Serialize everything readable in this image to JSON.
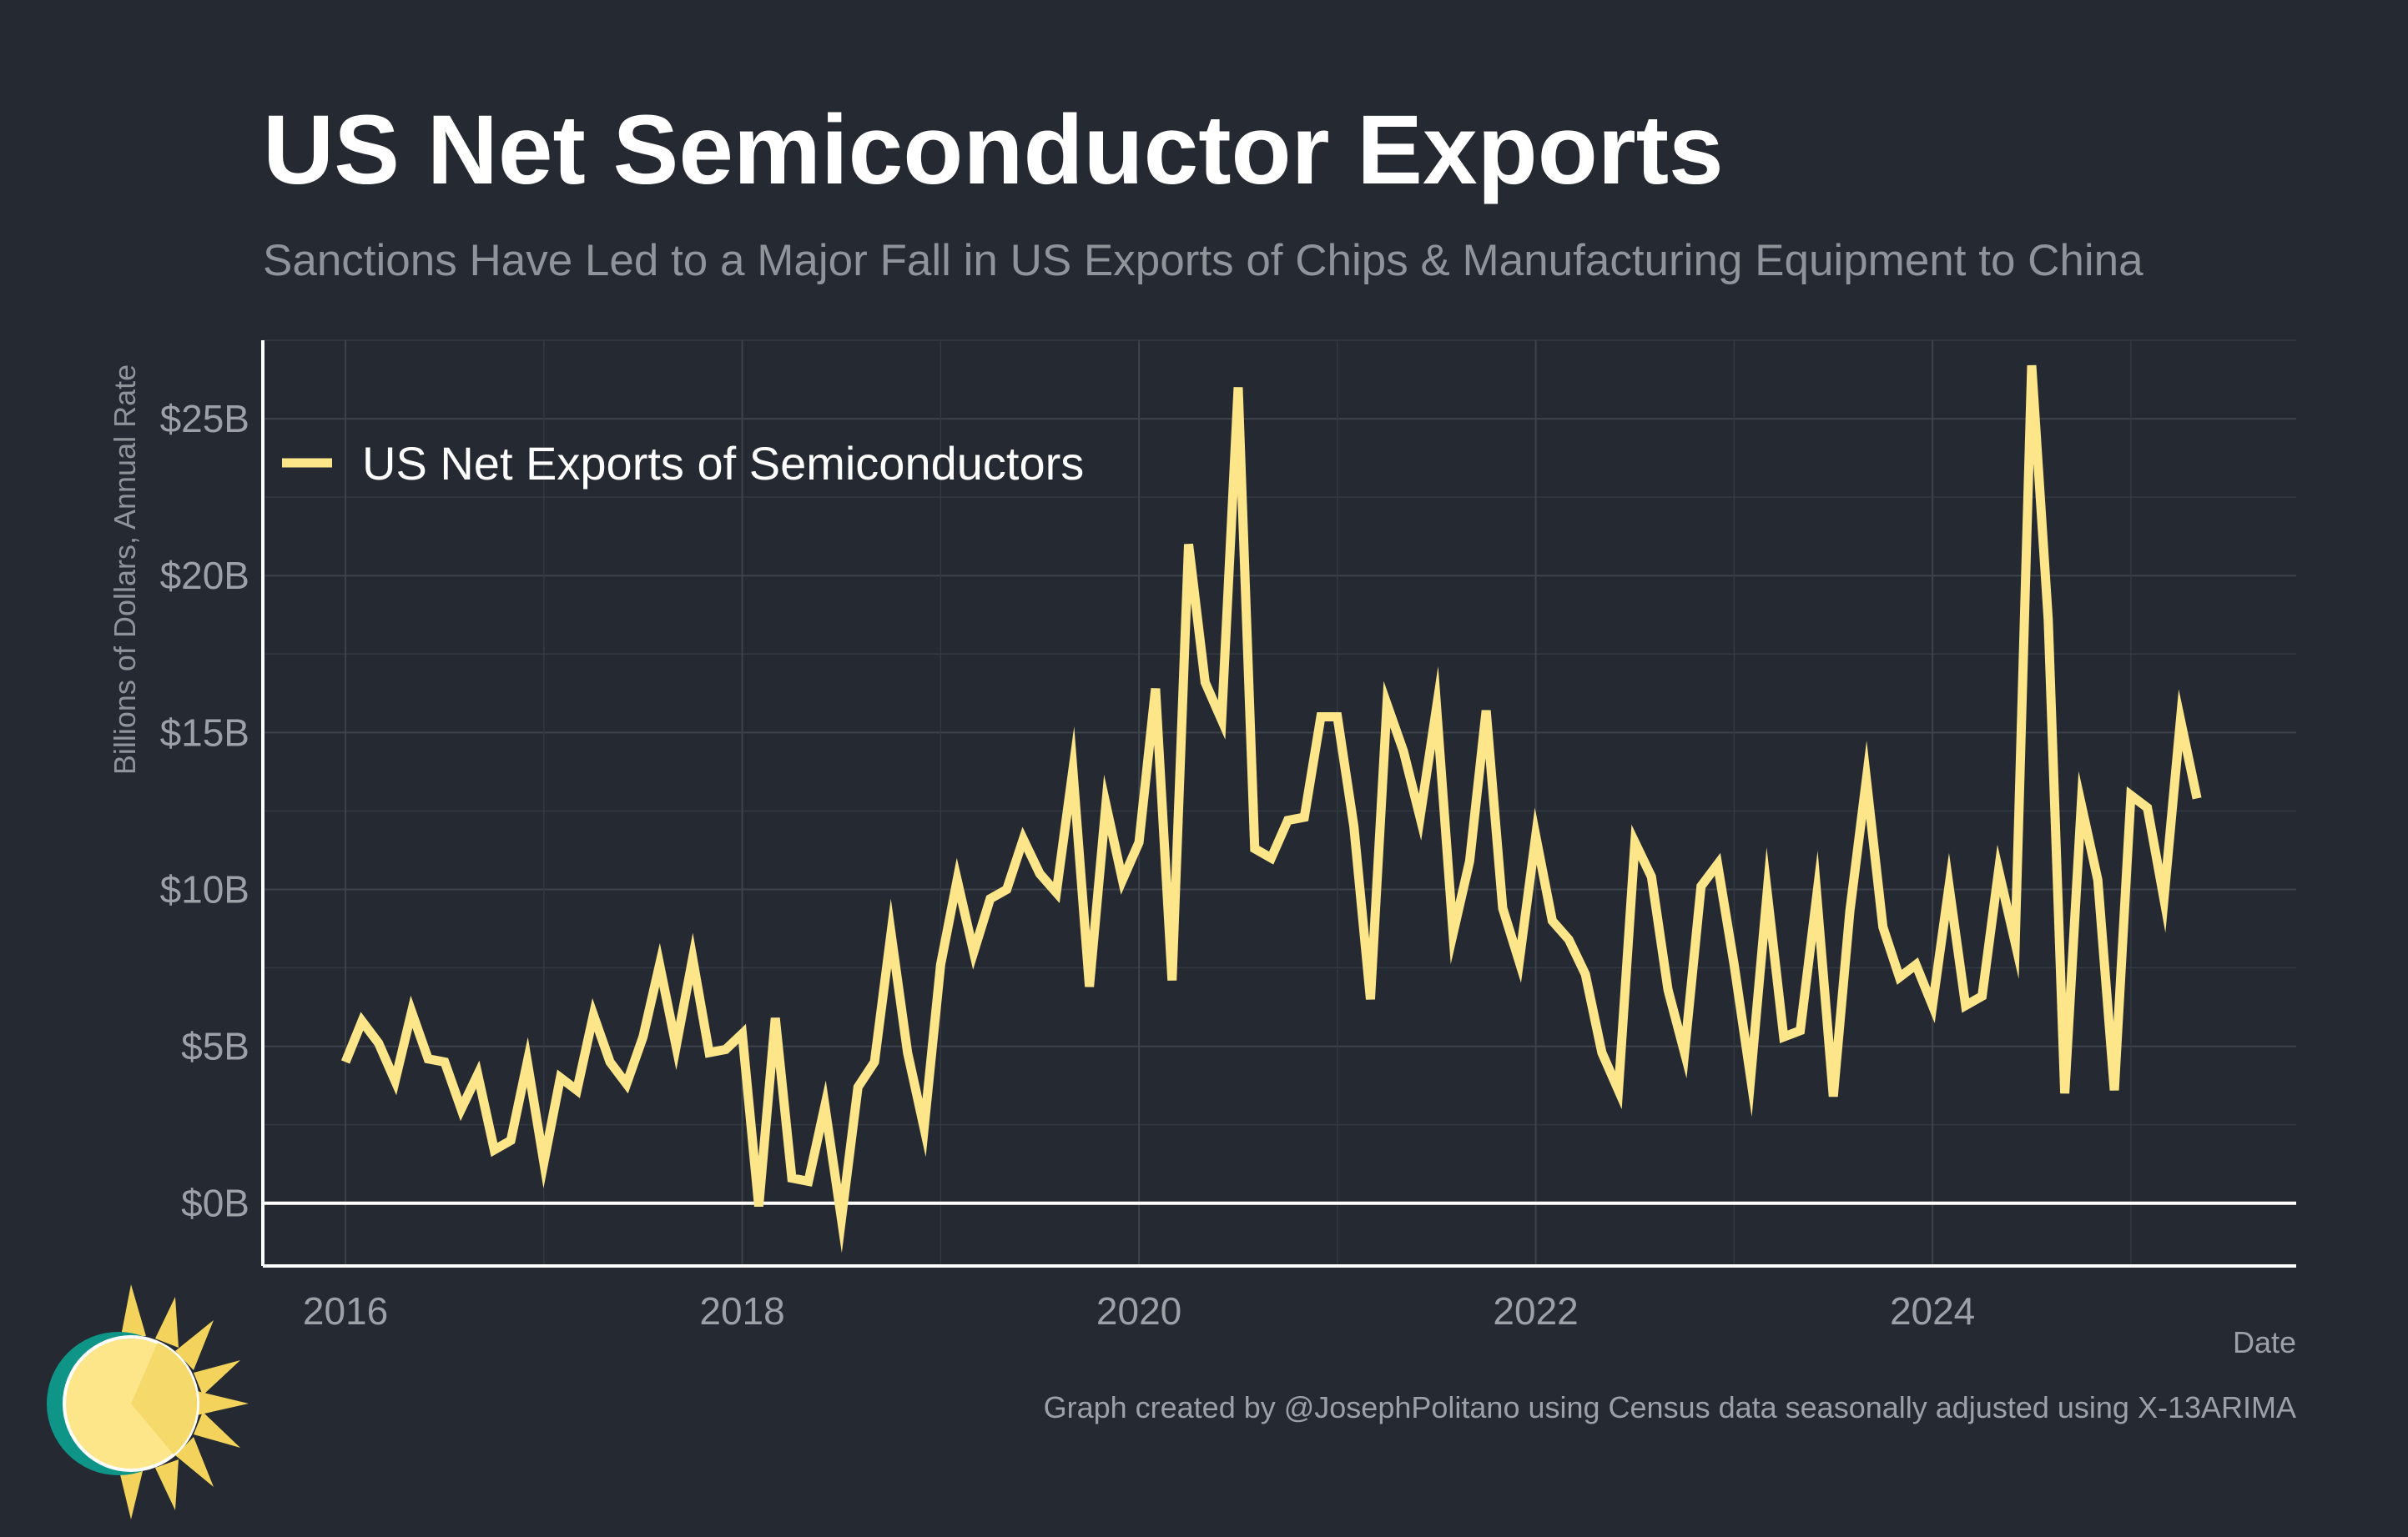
{
  "title": "US Net Semiconductor Exports",
  "subtitle": "Sanctions Have Led to a Major Fall in US Exports of Chips & Manufacturing Equipment to China",
  "caption": "Graph created by @JosephPolitano using Census data seasonally adjusted using X-13ARIMA",
  "logo_icon": "sun-logo-icon",
  "colors": {
    "background": "#252a32",
    "line": "#fde68a",
    "axis": "#ffffff",
    "zero_line": "#ffffff",
    "grid": "#3d424b"
  },
  "chart_data": {
    "type": "line",
    "title": "US Net Semiconductor Exports",
    "subtitle": "Sanctions Have Led to a Major Fall in US Exports of Chips & Manufacturing Equipment to China",
    "xlabel": "Date",
    "ylabel": "Billions of Dollars, Annual Rate",
    "x_start": "2016-01",
    "x_frequency": "monthly",
    "xlim": [
      "2015-08",
      "2025-11"
    ],
    "ylim": [
      -2,
      27.5
    ],
    "x_ticks": [
      "2016",
      "2018",
      "2020",
      "2022",
      "2024"
    ],
    "y_ticks": [
      0,
      5,
      10,
      15,
      20,
      25
    ],
    "y_tick_labels": [
      "$0B",
      "$5B",
      "$10B",
      "$15B",
      "$20B",
      "$25B"
    ],
    "grid": true,
    "zero_line": true,
    "legend_position": "top-left",
    "series": [
      {
        "name": "US Net Exports of Semiconductors",
        "color": "#fde68a",
        "values": [
          4.5,
          5.8,
          5.1,
          3.9,
          6.1,
          4.6,
          4.5,
          3.0,
          4.1,
          1.7,
          2.0,
          4.5,
          1.3,
          4.0,
          3.6,
          6.0,
          4.5,
          3.8,
          5.3,
          7.6,
          5.0,
          7.8,
          4.8,
          4.9,
          5.4,
          -0.1,
          5.9,
          0.8,
          0.7,
          3.1,
          -0.5,
          3.7,
          4.5,
          8.6,
          4.8,
          2.4,
          7.6,
          10.3,
          8.0,
          9.7,
          10.0,
          11.6,
          10.5,
          9.9,
          13.8,
          6.9,
          12.7,
          10.3,
          11.5,
          16.4,
          7.1,
          21.0,
          16.6,
          15.4,
          26.0,
          11.3,
          11.0,
          12.2,
          12.3,
          15.5,
          15.5,
          12.0,
          6.5,
          15.9,
          14.4,
          12.3,
          15.8,
          8.6,
          10.9,
          15.7,
          9.4,
          7.7,
          11.7,
          9.0,
          8.4,
          7.3,
          4.8,
          3.6,
          11.5,
          10.4,
          6.8,
          4.8,
          10.1,
          10.8,
          7.6,
          4.0,
          9.9,
          5.3,
          5.5,
          9.8,
          3.4,
          9.3,
          13.5,
          8.8,
          7.2,
          7.6,
          6.3,
          10.1,
          6.3,
          6.6,
          10.6,
          8.3,
          26.7,
          18.6,
          3.5,
          12.7,
          10.3,
          3.6,
          13.0,
          12.6,
          9.7,
          15.4,
          12.9
        ]
      }
    ]
  }
}
